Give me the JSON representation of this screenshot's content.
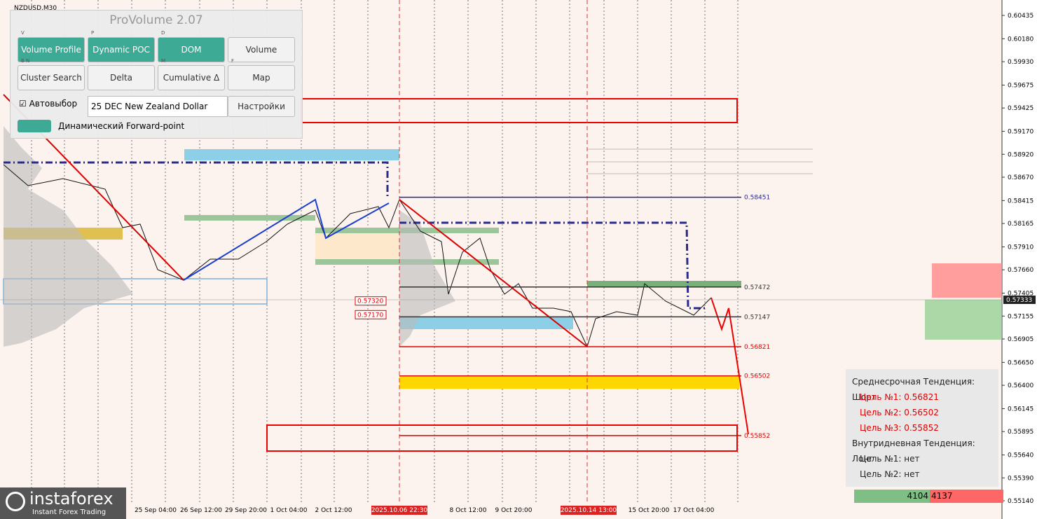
{
  "header": {
    "symbol": "NZDUSD,M30"
  },
  "panel": {
    "title": "ProVolume 2.07",
    "buttons": [
      {
        "key": "V",
        "label": "Volume Profile"
      },
      {
        "key": "P",
        "label": "Dynamic POC"
      },
      {
        "key": "D",
        "label": "DOM"
      },
      {
        "label": "Volume"
      },
      {
        "key": "B N",
        "label": "Cluster Search"
      },
      {
        "label": "Delta"
      },
      {
        "key": "M",
        "label": "Cumulative Δ"
      },
      {
        "key": "F",
        "label": "Map"
      }
    ],
    "checkbox": "Автовыбор",
    "dropdown": "25 DEC New Zealand Dollar",
    "settings": "Настройки",
    "toggle": "Динамический Forward-point"
  },
  "price_axis": {
    "ticks": [
      "0.60435",
      "0.60180",
      "0.59930",
      "0.59675",
      "0.59425",
      "0.59170",
      "0.58920",
      "0.58670",
      "0.58415",
      "0.58165",
      "0.57910",
      "0.57660",
      "0.57405",
      "0.57155",
      "0.56905",
      "0.56650",
      "0.56400",
      "0.56145",
      "0.55895",
      "0.55640",
      "0.55390",
      "0.55140"
    ],
    "current": "0.57333"
  },
  "time_axis": {
    "labels": [
      "25 Sep 04:00",
      "26 Sep 12:00",
      "29 Sep 20:00",
      "1 Oct 04:00",
      "2 Oct 12:00",
      "8 Oct 12:00",
      "9 Oct 20:00",
      "15 Oct 20:00",
      "17 Oct 04:00"
    ],
    "highlighted": [
      "2025.10.06 22:30",
      "2025.10.14 13:00"
    ]
  },
  "levels": [
    "0.58451",
    "0.57472",
    "0.57147",
    "0.56821",
    "0.56502",
    "0.55852"
  ],
  "left_levels": [
    "0.57320",
    "0.57170"
  ],
  "info": {
    "lines": [
      "Среднесрочная Тенденция: Шорт",
      "Цель №1: 0.56821",
      "Цель №2: 0.56502",
      "Цель №3: 0.55852",
      "Внутридневная Тенденция: Лонг",
      "Цель №1: нет",
      "Цель №2: нет"
    ],
    "buy": "4104",
    "sell": "4137"
  },
  "logo": {
    "name": "instaforex",
    "tagline": "Instant Forex Trading"
  }
}
